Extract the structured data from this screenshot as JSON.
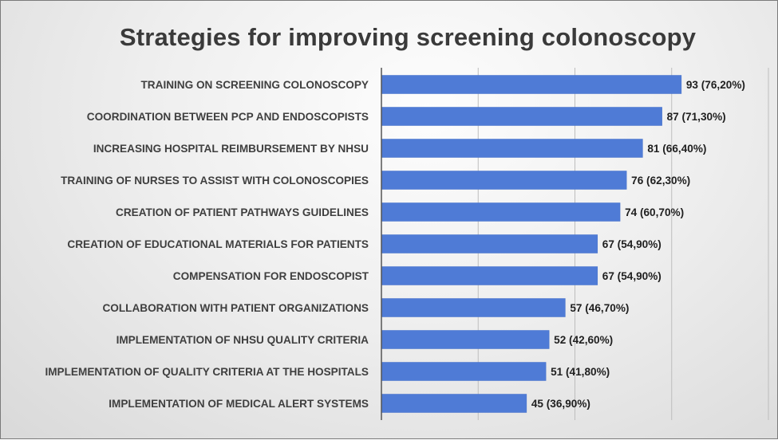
{
  "chart_data": {
    "type": "bar",
    "orientation": "horizontal",
    "title": "Strategies for improving screening colonoscopy",
    "categories": [
      "TRAINING ON SCREENING COLONOSCOPY",
      "COORDINATION BETWEEN PCP AND ENDOSCOPISTS",
      "INCREASING HOSPITAL REIMBURSEMENT BY NHSU",
      "TRAINING OF NURSES TO ASSIST WITH COLONOSCOPIES",
      "CREATION OF PATIENT PATHWAYS GUIDELINES",
      "CREATION OF EDUCATIONAL MATERIALS FOR PATIENTS",
      "COMPENSATION FOR ENDOSCOPIST",
      "COLLABORATION WITH PATIENT ORGANIZATIONS",
      "IMPLEMENTATION OF NHSU QUALITY CRITERIA",
      "IMPLEMENTATION OF QUALITY CRITERIA AT THE HOSPITALS",
      "IMPLEMENTATION OF MEDICAL ALERT SYSTEMS"
    ],
    "values": [
      93,
      87,
      81,
      76,
      74,
      67,
      67,
      57,
      52,
      51,
      45
    ],
    "data_labels": [
      "93 (76,20%)",
      "87 (71,30%)",
      "81 (66,40%)",
      "76 (62,30%)",
      "74 (60,70%)",
      "67 (54,90%)",
      "67 (54,90%)",
      "57 (46,70%)",
      "52 (42,60%)",
      "51 (41,80%)",
      "45 (36,90%)"
    ],
    "xlim": [
      0,
      120
    ],
    "gridlines": [
      0,
      30,
      60,
      90,
      120
    ],
    "grid": true,
    "legend": "none",
    "bar_color": "#4f7bd6"
  }
}
